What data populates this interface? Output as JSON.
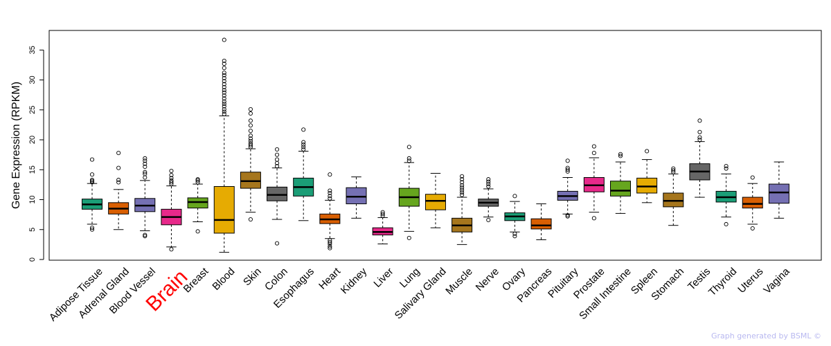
{
  "chart_data": {
    "type": "boxplot",
    "ylabel": "Gene Expression (RPKM)",
    "xlabel": "",
    "ylim": [
      0,
      37
    ],
    "yticks": [
      0,
      5,
      10,
      15,
      20,
      25,
      30,
      35
    ],
    "highlight": "Brain",
    "highlight_color": "#ff0000",
    "categories": [
      {
        "name": "Adipose Tissue",
        "color": "#1b9e77",
        "q1": 8.4,
        "median": 9.2,
        "q3": 10.1,
        "whisker_low": 5.9,
        "whisker_high": 12.7,
        "outliers": [
          5.0,
          5.3,
          12.9,
          13.1,
          13.3,
          14.2,
          16.7
        ]
      },
      {
        "name": "Adrenal Gland",
        "color": "#d95f02",
        "q1": 7.6,
        "median": 8.5,
        "q3": 9.5,
        "whisker_low": 5.0,
        "whisker_high": 11.7,
        "outliers": [
          12.9,
          13.3,
          15.3,
          17.8
        ]
      },
      {
        "name": "Blood Vessel",
        "color": "#7570b3",
        "q1": 8.0,
        "median": 9.0,
        "q3": 10.2,
        "whisker_low": 4.8,
        "whisker_high": 13.2,
        "outliers": [
          3.9,
          4.1,
          13.7,
          14.3,
          14.6,
          15.5,
          16.0,
          16.5,
          16.9
        ]
      },
      {
        "name": "Brain",
        "color": "#e7298a",
        "q1": 5.8,
        "median": 7.1,
        "q3": 8.4,
        "whisker_low": 2.1,
        "whisker_high": 12.3,
        "outliers": [
          1.7,
          12.6,
          12.9,
          13.2,
          13.6,
          14.1,
          14.8
        ]
      },
      {
        "name": "Breast",
        "color": "#66a61e",
        "q1": 8.6,
        "median": 9.6,
        "q3": 10.3,
        "whisker_low": 6.3,
        "whisker_high": 12.6,
        "outliers": [
          4.7,
          12.9,
          13.2,
          13.4
        ]
      },
      {
        "name": "Blood",
        "color": "#e6ab02",
        "q1": 4.4,
        "median": 6.6,
        "q3": 12.2,
        "whisker_low": 1.2,
        "whisker_high": 24.0,
        "outliers": [
          24.3,
          24.7,
          25.1,
          25.6,
          26.0,
          26.4,
          26.9,
          27.4,
          27.9,
          28.3,
          28.8,
          29.3,
          29.8,
          30.3,
          30.8,
          31.2,
          32.0,
          32.7,
          33.2,
          36.7
        ]
      },
      {
        "name": "Skin",
        "color": "#a6761d",
        "q1": 11.9,
        "median": 13.1,
        "q3": 14.6,
        "whisker_low": 7.9,
        "whisker_high": 18.5,
        "outliers": [
          6.7,
          18.8,
          19.1,
          19.4,
          19.8,
          20.2,
          20.7,
          21.5,
          22.4,
          23.2,
          24.4,
          25.1
        ]
      },
      {
        "name": "Colon",
        "color": "#666666",
        "q1": 9.8,
        "median": 10.8,
        "q3": 12.1,
        "whisker_low": 6.7,
        "whisker_high": 15.3,
        "outliers": [
          2.7,
          15.6,
          16.1,
          16.7,
          17.5,
          18.4
        ]
      },
      {
        "name": "Esophagus",
        "color": "#1b9e77",
        "q1": 10.6,
        "median": 12.1,
        "q3": 13.6,
        "whisker_low": 6.5,
        "whisker_high": 18.1,
        "outliers": [
          18.4,
          18.8,
          19.2,
          19.6,
          21.7
        ]
      },
      {
        "name": "Heart",
        "color": "#d95f02",
        "q1": 6.0,
        "median": 6.7,
        "q3": 7.6,
        "whisker_low": 3.5,
        "whisker_high": 9.9,
        "outliers": [
          1.9,
          2.2,
          2.6,
          2.9,
          3.2,
          10.2,
          10.6,
          11.1,
          11.5,
          14.2
        ]
      },
      {
        "name": "Kidney",
        "color": "#7570b3",
        "q1": 9.3,
        "median": 10.5,
        "q3": 12.0,
        "whisker_low": 6.9,
        "whisker_high": 13.8,
        "outliers": []
      },
      {
        "name": "Liver",
        "color": "#e7298a",
        "q1": 4.1,
        "median": 4.6,
        "q3": 5.3,
        "whisker_low": 2.6,
        "whisker_high": 7.0,
        "outliers": [
          7.3,
          7.6,
          7.9
        ]
      },
      {
        "name": "Lung",
        "color": "#66a61e",
        "q1": 8.9,
        "median": 10.4,
        "q3": 11.9,
        "whisker_low": 4.7,
        "whisker_high": 16.2,
        "outliers": [
          3.6,
          16.5,
          16.9,
          18.8
        ]
      },
      {
        "name": "Salivary Gland",
        "color": "#e6ab02",
        "q1": 8.3,
        "median": 9.8,
        "q3": 10.9,
        "whisker_low": 5.3,
        "whisker_high": 14.4,
        "outliers": []
      },
      {
        "name": "Muscle",
        "color": "#a6761d",
        "q1": 4.6,
        "median": 5.7,
        "q3": 6.9,
        "whisker_low": 2.5,
        "whisker_high": 10.4,
        "outliers": [
          10.8,
          11.2,
          11.6,
          12.0,
          12.4,
          12.9,
          13.4,
          13.9
        ]
      },
      {
        "name": "Nerve",
        "color": "#666666",
        "q1": 8.9,
        "median": 9.5,
        "q3": 10.1,
        "whisker_low": 7.1,
        "whisker_high": 11.8,
        "outliers": [
          6.6,
          12.2,
          12.6,
          13.0,
          13.4
        ]
      },
      {
        "name": "Ovary",
        "color": "#1b9e77",
        "q1": 6.5,
        "median": 7.2,
        "q3": 7.8,
        "whisker_low": 4.6,
        "whisker_high": 9.7,
        "outliers": [
          3.9,
          4.3,
          10.6
        ]
      },
      {
        "name": "Pancreas",
        "color": "#d95f02",
        "q1": 5.1,
        "median": 5.7,
        "q3": 6.8,
        "whisker_low": 3.3,
        "whisker_high": 9.3,
        "outliers": []
      },
      {
        "name": "Pituitary",
        "color": "#7570b3",
        "q1": 9.9,
        "median": 10.6,
        "q3": 11.4,
        "whisker_low": 7.6,
        "whisker_high": 13.7,
        "outliers": [
          7.2,
          7.4,
          14.7,
          15.0,
          15.3,
          16.5
        ]
      },
      {
        "name": "Prostate",
        "color": "#e7298a",
        "q1": 11.3,
        "median": 12.4,
        "q3": 13.7,
        "whisker_low": 7.9,
        "whisker_high": 17.0,
        "outliers": [
          6.9,
          17.8,
          18.9
        ]
      },
      {
        "name": "Small Intestine",
        "color": "#66a61e",
        "q1": 10.6,
        "median": 11.5,
        "q3": 13.1,
        "whisker_low": 7.7,
        "whisker_high": 16.3,
        "outliers": [
          17.3,
          17.6
        ]
      },
      {
        "name": "Spleen",
        "color": "#e6ab02",
        "q1": 11.1,
        "median": 12.2,
        "q3": 13.6,
        "whisker_low": 9.5,
        "whisker_high": 16.7,
        "outliers": [
          18.1
        ]
      },
      {
        "name": "Stomach",
        "color": "#a6761d",
        "q1": 8.8,
        "median": 9.8,
        "q3": 11.1,
        "whisker_low": 5.7,
        "whisker_high": 14.3,
        "outliers": [
          14.6,
          14.9,
          15.2
        ]
      },
      {
        "name": "Testis",
        "color": "#666666",
        "q1": 13.3,
        "median": 14.7,
        "q3": 16.0,
        "whisker_low": 10.4,
        "whisker_high": 19.7,
        "outliers": [
          20.0,
          20.4,
          21.3,
          23.2
        ]
      },
      {
        "name": "Thyroid",
        "color": "#1b9e77",
        "q1": 9.6,
        "median": 10.4,
        "q3": 11.4,
        "whisker_low": 7.1,
        "whisker_high": 14.3,
        "outliers": [
          5.9,
          15.2,
          15.6
        ]
      },
      {
        "name": "Uterus",
        "color": "#d95f02",
        "q1": 8.6,
        "median": 9.3,
        "q3": 10.4,
        "whisker_low": 5.9,
        "whisker_high": 12.7,
        "outliers": [
          5.2,
          13.7
        ]
      },
      {
        "name": "Vagina",
        "color": "#7570b3",
        "q1": 9.4,
        "median": 11.2,
        "q3": 12.6,
        "whisker_low": 6.9,
        "whisker_high": 16.3,
        "outliers": []
      }
    ]
  },
  "credit": "Graph generated by BSML ©"
}
